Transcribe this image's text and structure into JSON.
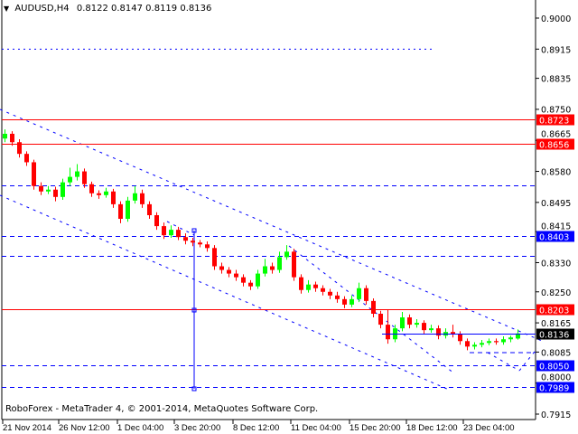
{
  "header": {
    "symbol": "AUDUSD,H4",
    "ohlc": "0.8122 0.8147 0.8119 0.8136"
  },
  "footer": {
    "copyright": "RoboForex - MetaTrader 4, © 2001-2014, MetaQuotes Software Corp."
  },
  "colors": {
    "bull": "#00ff00",
    "bear": "#ff0000",
    "level_red": "#ff0000",
    "level_blue": "#0000ff",
    "current": "#000000"
  },
  "chart_data": {
    "type": "candlestick",
    "title": "AUDUSD,H4",
    "ylim": [
      0.7915,
      0.9
    ],
    "y_ticks": [
      "0.9000",
      "0.8915",
      "0.8835",
      "0.8750",
      "0.8665",
      "0.8580",
      "0.8495",
      "0.8415",
      "0.8330",
      "0.8250",
      "0.8165",
      "0.8085",
      "0.8000",
      "0.7915"
    ],
    "x_ticks": [
      "21 Nov 2014",
      "26 Nov 12:00",
      "1 Dec 04:00",
      "3 Dec 20:00",
      "8 Dec 12:00",
      "11 Dec 04:00",
      "15 Dec 20:00",
      "18 Dec 12:00",
      "23 Dec 04:00"
    ],
    "grid": false,
    "candles": [
      [
        0.867,
        0.8695,
        0.866,
        0.8683
      ],
      [
        0.8683,
        0.869,
        0.865,
        0.866
      ],
      [
        0.866,
        0.8668,
        0.8618,
        0.8628
      ],
      [
        0.8628,
        0.8635,
        0.8595,
        0.8605
      ],
      [
        0.8605,
        0.8612,
        0.853,
        0.854
      ],
      [
        0.854,
        0.855,
        0.8515,
        0.8525
      ],
      [
        0.8525,
        0.854,
        0.8518,
        0.853
      ],
      [
        0.853,
        0.8538,
        0.8498,
        0.851
      ],
      [
        0.851,
        0.856,
        0.8502,
        0.855
      ],
      [
        0.855,
        0.859,
        0.854,
        0.8565
      ],
      [
        0.8565,
        0.86,
        0.8555,
        0.858
      ],
      [
        0.858,
        0.8588,
        0.8535,
        0.8545
      ],
      [
        0.8545,
        0.8552,
        0.851,
        0.852
      ],
      [
        0.852,
        0.8528,
        0.8505,
        0.8515
      ],
      [
        0.8515,
        0.8535,
        0.8508,
        0.8525
      ],
      [
        0.8525,
        0.8532,
        0.848,
        0.849
      ],
      [
        0.849,
        0.8498,
        0.8438,
        0.845
      ],
      [
        0.845,
        0.851,
        0.8442,
        0.85
      ],
      [
        0.85,
        0.854,
        0.8492,
        0.852
      ],
      [
        0.852,
        0.853,
        0.848,
        0.849
      ],
      [
        0.849,
        0.8498,
        0.845,
        0.846
      ],
      [
        0.846,
        0.8468,
        0.842,
        0.843
      ],
      [
        0.843,
        0.844,
        0.8395,
        0.8405
      ],
      [
        0.8405,
        0.8432,
        0.8398,
        0.842
      ],
      [
        0.842,
        0.8428,
        0.8392,
        0.84
      ],
      [
        0.84,
        0.841,
        0.838,
        0.839
      ],
      [
        0.839,
        0.8398,
        0.8375,
        0.8385
      ],
      [
        0.8385,
        0.8392,
        0.8372,
        0.838
      ],
      [
        0.838,
        0.8388,
        0.836,
        0.837
      ],
      [
        0.837,
        0.8378,
        0.831,
        0.832
      ],
      [
        0.832,
        0.833,
        0.83,
        0.831
      ],
      [
        0.831,
        0.8318,
        0.829,
        0.83
      ],
      [
        0.83,
        0.831,
        0.828,
        0.829
      ],
      [
        0.829,
        0.8298,
        0.8265,
        0.8275
      ],
      [
        0.8275,
        0.8282,
        0.8255,
        0.8265
      ],
      [
        0.8265,
        0.831,
        0.8258,
        0.83
      ],
      [
        0.83,
        0.834,
        0.8292,
        0.832
      ],
      [
        0.832,
        0.833,
        0.83,
        0.831
      ],
      [
        0.831,
        0.836,
        0.8302,
        0.8345
      ],
      [
        0.8345,
        0.8378,
        0.8338,
        0.836
      ],
      [
        0.836,
        0.8368,
        0.828,
        0.829
      ],
      [
        0.829,
        0.8298,
        0.8245,
        0.8255
      ],
      [
        0.8255,
        0.8282,
        0.8248,
        0.827
      ],
      [
        0.827,
        0.8278,
        0.825,
        0.826
      ],
      [
        0.826,
        0.8268,
        0.824,
        0.825
      ],
      [
        0.825,
        0.8258,
        0.823,
        0.824
      ],
      [
        0.824,
        0.825,
        0.822,
        0.823
      ],
      [
        0.823,
        0.8238,
        0.8205,
        0.8215
      ],
      [
        0.8215,
        0.824,
        0.8208,
        0.823
      ],
      [
        0.823,
        0.8275,
        0.8222,
        0.826
      ],
      [
        0.826,
        0.8268,
        0.8215,
        0.8225
      ],
      [
        0.8225,
        0.8232,
        0.818,
        0.819
      ],
      [
        0.819,
        0.8198,
        0.815,
        0.816
      ],
      [
        0.816,
        0.82,
        0.8108,
        0.812
      ],
      [
        0.812,
        0.816,
        0.8112,
        0.815
      ],
      [
        0.815,
        0.8195,
        0.8142,
        0.818
      ],
      [
        0.818,
        0.8188,
        0.815,
        0.816
      ],
      [
        0.816,
        0.8175,
        0.8152,
        0.8165
      ],
      [
        0.8165,
        0.8172,
        0.8135,
        0.8145
      ],
      [
        0.8145,
        0.816,
        0.8138,
        0.815
      ],
      [
        0.815,
        0.8158,
        0.812,
        0.813
      ],
      [
        0.813,
        0.815,
        0.8122,
        0.814
      ],
      [
        0.814,
        0.816,
        0.8125,
        0.8135
      ],
      [
        0.8135,
        0.8142,
        0.8105,
        0.8115
      ],
      [
        0.8115,
        0.8122,
        0.809,
        0.81
      ],
      [
        0.81,
        0.8112,
        0.8092,
        0.8105
      ],
      [
        0.8105,
        0.8118,
        0.8098,
        0.811
      ],
      [
        0.811,
        0.8122,
        0.8104,
        0.8115
      ],
      [
        0.8115,
        0.8122,
        0.8105,
        0.8112
      ],
      [
        0.8112,
        0.8128,
        0.8105,
        0.812
      ],
      [
        0.812,
        0.813,
        0.8112,
        0.8125
      ],
      [
        0.8122,
        0.8147,
        0.8119,
        0.8136
      ]
    ],
    "levels": [
      {
        "price": 0.8723,
        "label": "0.8723",
        "color": "#ff0000",
        "style": "solid",
        "badge": true
      },
      {
        "price": 0.8656,
        "label": "0.8656",
        "color": "#ff0000",
        "style": "solid",
        "badge": true
      },
      {
        "price": 0.8203,
        "label": "0.8203",
        "color": "#ff0000",
        "style": "solid",
        "badge": true
      },
      {
        "price": 0.8403,
        "label": "0.8403",
        "color": "#0000ff",
        "style": "dashed",
        "badge": true
      },
      {
        "price": 0.805,
        "label": "0.8050",
        "color": "#0000ff",
        "style": "dashed",
        "badge": true
      },
      {
        "price": 0.7989,
        "label": "0.7989",
        "color": "#0000ff",
        "style": "dashed",
        "badge": true
      },
      {
        "price": 0.8542,
        "label": "",
        "color": "#0000ff",
        "style": "dashed",
        "badge": false
      },
      {
        "price": 0.8349,
        "label": "",
        "color": "#0000ff",
        "style": "dashed",
        "badge": false
      }
    ],
    "current_price": {
      "price": 0.8136,
      "label": "0.8136",
      "color": "#000000"
    }
  }
}
